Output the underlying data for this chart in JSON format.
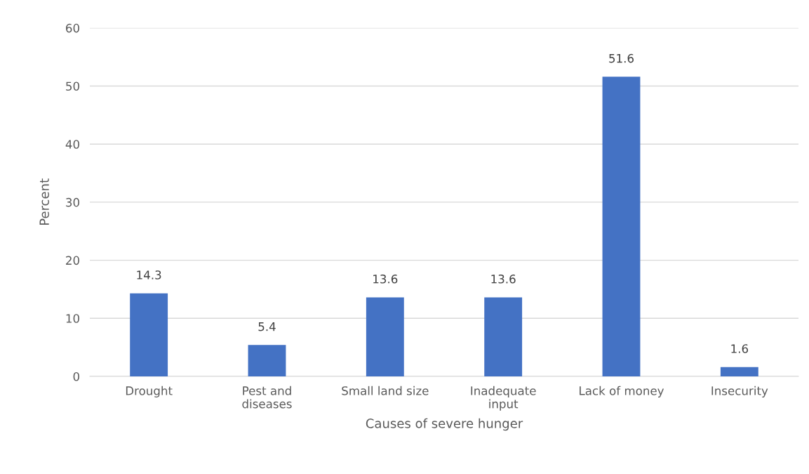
{
  "chart_data": {
    "type": "bar",
    "xlabel": "Causes of severe hunger",
    "ylabel": "Percent",
    "categories": [
      "Drought",
      "Pest and\ndiseases",
      "Small land size",
      "Inadequate\ninput",
      "Lack of money",
      "Insecurity"
    ],
    "values": [
      14.3,
      5.4,
      13.6,
      13.6,
      51.6,
      1.6
    ],
    "color": "#4472c4",
    "ylim": [
      0,
      60
    ],
    "yticks": [
      0,
      10,
      20,
      30,
      40,
      50,
      60
    ],
    "grid": "y",
    "data_labels": true
  }
}
